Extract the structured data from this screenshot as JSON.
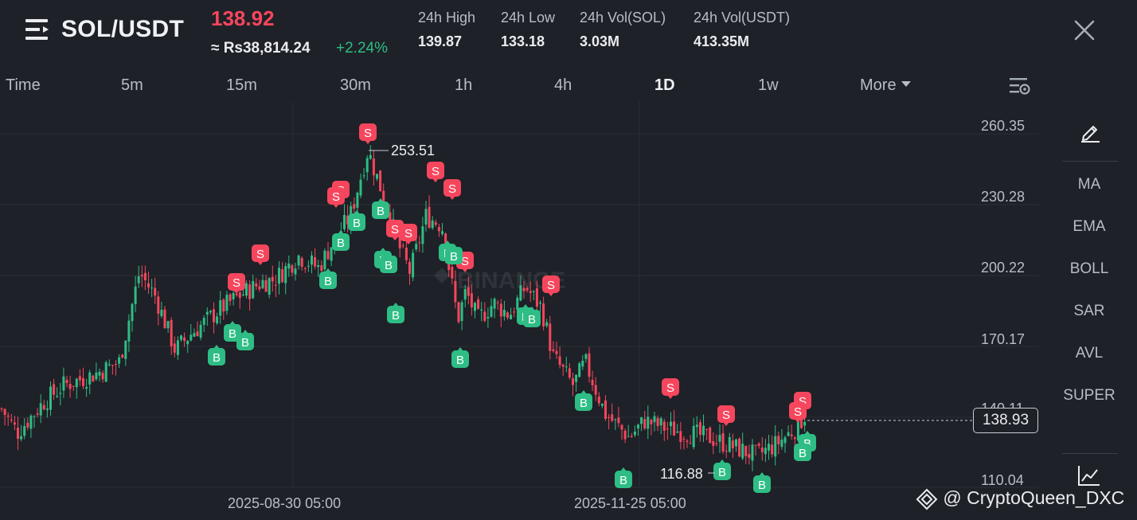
{
  "header": {
    "pair": "SOL/USDT",
    "last_price": "138.92",
    "fiat_price": "≈ Rs38,814.24",
    "change_pct": "+2.24%",
    "stats": [
      {
        "label": "24h High",
        "value": "139.87"
      },
      {
        "label": "24h Low",
        "value": "133.18"
      },
      {
        "label": "24h Vol(SOL)",
        "value": "3.03M"
      },
      {
        "label": "24h Vol(USDT)",
        "value": "413.35M"
      }
    ]
  },
  "intervals": [
    "Time",
    "5m",
    "15m",
    "30m",
    "1h",
    "4h",
    "1D",
    "1w",
    "More"
  ],
  "active_interval": "1D",
  "indicators": [
    "MA",
    "EMA",
    "BOLL",
    "SAR",
    "AVL",
    "SUPER"
  ],
  "chart": {
    "y_ticks": [
      "260.35",
      "230.28",
      "200.22",
      "170.17",
      "140.11",
      "110.04"
    ],
    "x_ticks": [
      "2025-08-30 05:00",
      "2025-11-25 05:00"
    ],
    "current_price": "138.93",
    "high_annotation": "253.51",
    "low_annotation": "116.88",
    "watermark": "BINANCE",
    "buy_marker": "B",
    "sell_marker": "S"
  },
  "colors": {
    "up": "#2ebd85",
    "down": "#f6465d",
    "background": "#1e2127"
  },
  "footer": {
    "watermark": "@ CryptoQueen_DXC"
  }
}
